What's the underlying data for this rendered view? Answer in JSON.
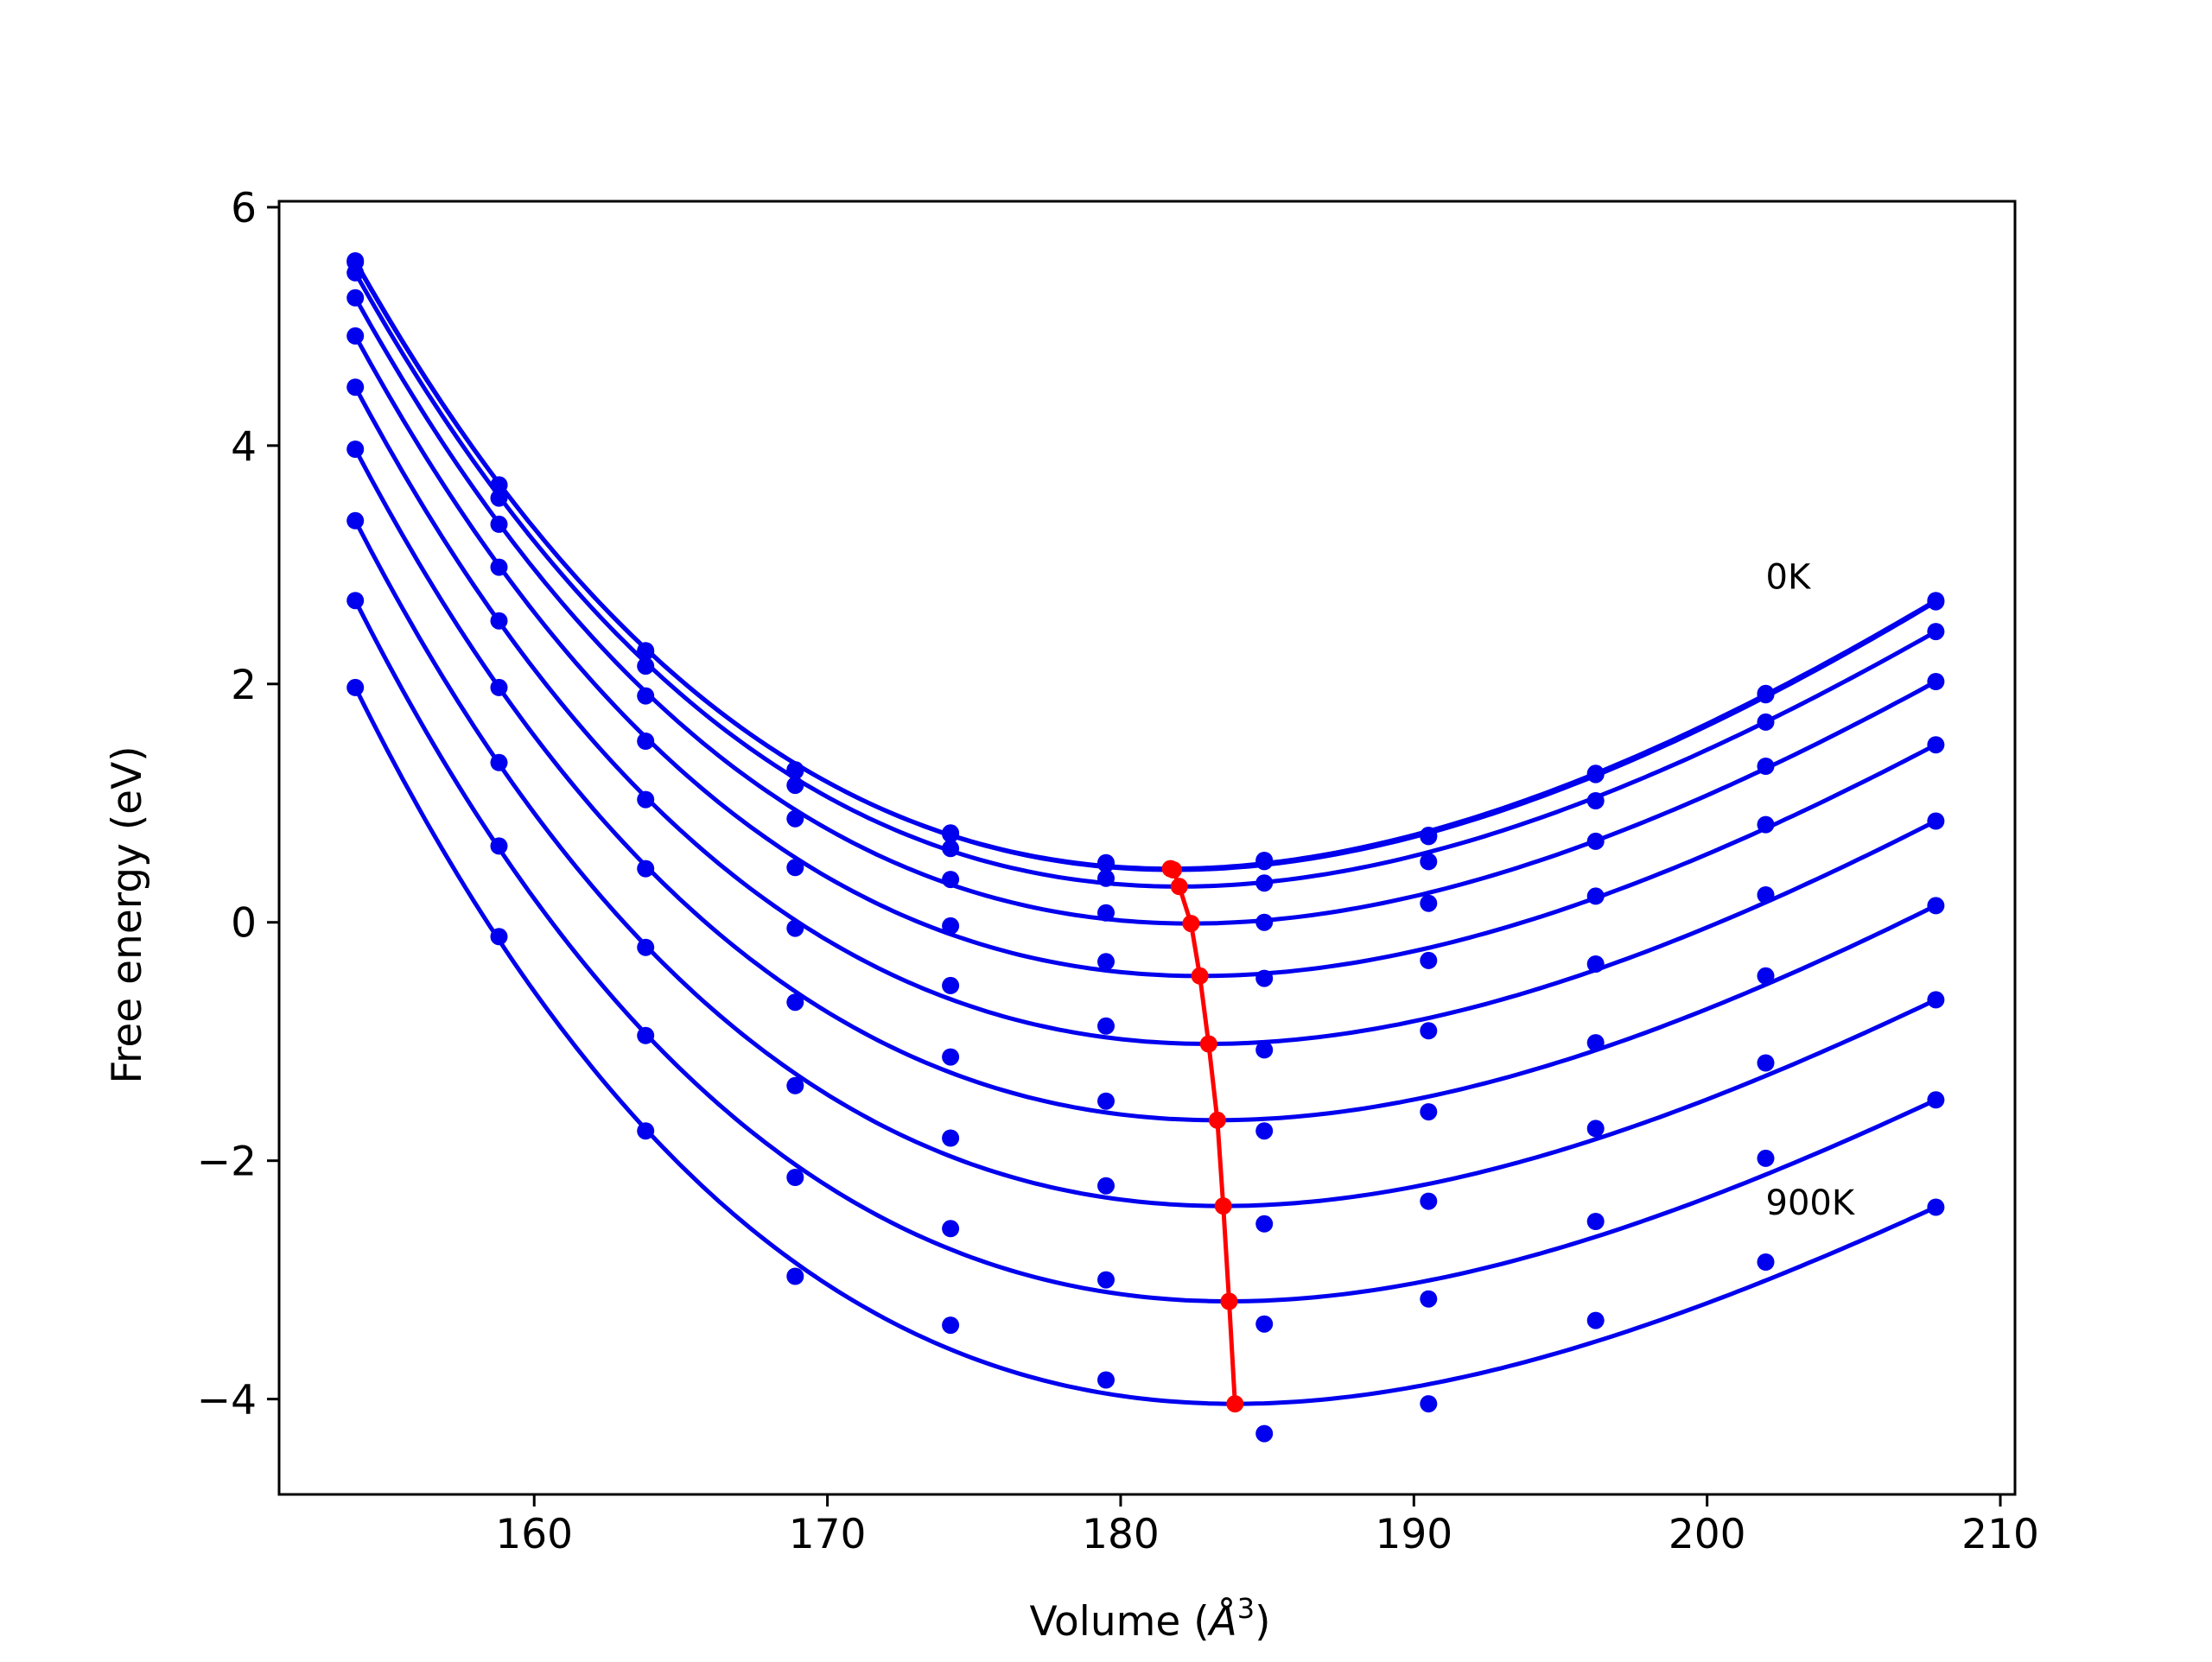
{
  "chart_data": {
    "type": "line",
    "xlabel": "Volume (",
    "xlabel_unit": "Å",
    "xlabel_sup": "3",
    "xlabel_close": ")",
    "ylabel": "Free energy (eV)",
    "xlim": [
      151.3,
      210.5
    ],
    "ylim": [
      -4.8,
      6.05
    ],
    "xticks": [
      160,
      170,
      180,
      190,
      200,
      210
    ],
    "xtick_labels": [
      "160",
      "170",
      "180",
      "190",
      "200",
      "210"
    ],
    "yticks": [
      6,
      4,
      2,
      0,
      -2,
      -4
    ],
    "ytick_labels": [
      "6",
      "4",
      "2",
      "0",
      "−2",
      "−4"
    ],
    "grid": false,
    "legend": "none",
    "annotations": [
      {
        "text": "0K",
        "x": 202.0,
        "y": 2.8
      },
      {
        "text": "900K",
        "x": 202.0,
        "y": -2.45
      }
    ],
    "colors": {
      "curves": "#0000ee",
      "minima": "#ff0000",
      "axes": "#000000"
    },
    "volumes": [
      153.9,
      158.8,
      163.8,
      168.9,
      174.2,
      179.5,
      184.9,
      190.5,
      196.2,
      202.0,
      207.8
    ],
    "series": [
      {
        "E0": 0.45,
        "V0": 181.7,
        "data": [
          5.55,
          3.67,
          2.28,
          1.28,
          0.75,
          0.5,
          0.52,
          0.73,
          1.25,
          1.92,
          2.7
        ]
      },
      {
        "E0": 0.44,
        "V0": 181.8,
        "data": [
          5.54,
          3.67,
          2.27,
          1.27,
          0.74,
          0.49,
          0.51,
          0.72,
          1.24,
          1.91,
          2.69
        ]
      },
      {
        "E0": 0.3,
        "V0": 182.0,
        "data": [
          5.45,
          3.56,
          2.15,
          1.15,
          0.62,
          0.37,
          0.33,
          0.51,
          1.02,
          1.68,
          2.44
        ]
      },
      {
        "E0": -0.01,
        "V0": 182.4,
        "data": [
          5.24,
          3.34,
          1.9,
          0.87,
          0.36,
          0.08,
          0.0,
          0.16,
          0.68,
          1.31,
          2.02
        ]
      },
      {
        "E0": -0.45,
        "V0": 182.7,
        "data": [
          4.92,
          2.98,
          1.52,
          0.46,
          -0.03,
          -0.33,
          -0.47,
          -0.32,
          0.22,
          0.82,
          1.49
        ]
      },
      {
        "E0": -1.02,
        "V0": 183.0,
        "data": [
          4.49,
          2.53,
          1.03,
          -0.05,
          -0.53,
          -0.87,
          -1.07,
          -0.91,
          -0.35,
          0.23,
          0.85
        ]
      },
      {
        "E0": -1.66,
        "V0": 183.3,
        "data": [
          3.97,
          1.97,
          0.45,
          -0.67,
          -1.13,
          -1.5,
          -1.75,
          -1.59,
          -1.01,
          -0.45,
          0.14
        ]
      },
      {
        "E0": -2.38,
        "V0": 183.5,
        "data": [
          3.37,
          1.34,
          -0.21,
          -1.37,
          -1.81,
          -2.21,
          -2.53,
          -2.34,
          -1.73,
          -1.18,
          -0.65
        ]
      },
      {
        "E0": -3.18,
        "V0": 183.7,
        "data": [
          2.7,
          0.64,
          -0.95,
          -2.14,
          -2.57,
          -3.0,
          -3.37,
          -3.16,
          -2.51,
          -1.98,
          -1.49
        ]
      },
      {
        "E0": -4.04,
        "V0": 183.9,
        "data": [
          1.97,
          -0.12,
          -1.75,
          -2.97,
          -3.38,
          -3.84,
          -4.29,
          -4.04,
          -3.34,
          -2.85,
          -2.39
        ]
      }
    ],
    "minima_path": {
      "x": [
        181.7,
        181.8,
        182.0,
        182.4,
        182.7,
        183.0,
        183.3,
        183.5,
        183.7,
        183.9
      ],
      "y": [
        0.45,
        0.44,
        0.3,
        -0.01,
        -0.45,
        -1.02,
        -1.66,
        -2.38,
        -3.18,
        -4.04
      ]
    }
  }
}
